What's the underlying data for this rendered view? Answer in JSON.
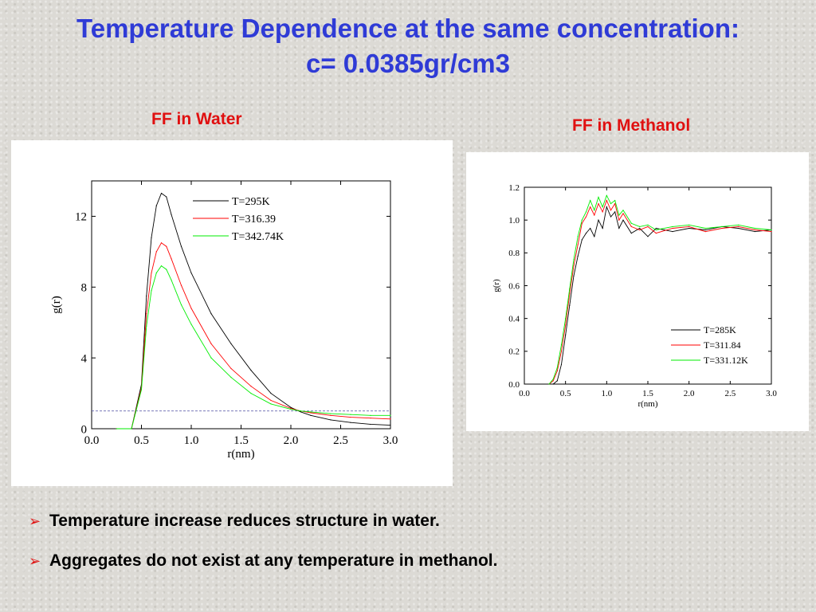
{
  "slide": {
    "title_line1": "Temperature Dependence at the same concentration:",
    "title_line2": "c= 0.0385gr/cm3",
    "water_heading": "FF in Water",
    "methanol_heading": "FF in Methanol",
    "bullets": [
      "Temperature increase reduces structure in water.",
      "Aggregates do not exist at any temperature in methanol."
    ],
    "colors": {
      "title": "#2f3bd6",
      "heading": "#e01010",
      "bullet_arrow": "#e01010"
    },
    "bullet_icon": "arrowhead-bullet-icon"
  },
  "chart_data": [
    {
      "type": "line",
      "title": "",
      "xlabel": "r(nm)",
      "ylabel": "g(r)",
      "xlim": [
        0.0,
        3.0
      ],
      "ylim": [
        0,
        14
      ],
      "xticks": [
        "0.0",
        "0.5",
        "1.0",
        "1.5",
        "2.0",
        "2.5",
        "3.0"
      ],
      "yticks": [
        "0",
        "4",
        "8",
        "12"
      ],
      "legend_position": "top-right",
      "reference_line": {
        "y": 1.0,
        "style": "dashed"
      },
      "series": [
        {
          "name": "T=295K",
          "color": "#000000",
          "x": [
            0.25,
            0.4,
            0.5,
            0.55,
            0.6,
            0.65,
            0.7,
            0.75,
            0.8,
            0.9,
            1.0,
            1.2,
            1.4,
            1.6,
            1.8,
            2.0,
            2.1,
            2.2,
            2.4,
            2.6,
            2.8,
            3.0
          ],
          "y": [
            0,
            0,
            2.5,
            7.5,
            10.8,
            12.6,
            13.3,
            13.1,
            12.1,
            10.3,
            8.8,
            6.5,
            4.8,
            3.3,
            2.0,
            1.2,
            0.95,
            0.75,
            0.5,
            0.35,
            0.25,
            0.2
          ]
        },
        {
          "name": "T=316.39",
          "color": "#ff0000",
          "x": [
            0.25,
            0.4,
            0.5,
            0.55,
            0.6,
            0.65,
            0.7,
            0.75,
            0.8,
            0.9,
            1.0,
            1.2,
            1.4,
            1.6,
            1.8,
            2.0,
            2.1,
            2.2,
            2.4,
            2.6,
            2.8,
            3.0
          ],
          "y": [
            0,
            0,
            2.3,
            6.5,
            8.8,
            10.0,
            10.5,
            10.3,
            9.6,
            8.1,
            6.8,
            4.8,
            3.4,
            2.4,
            1.6,
            1.15,
            1.0,
            0.9,
            0.75,
            0.65,
            0.6,
            0.55
          ]
        },
        {
          "name": "T=342.74K",
          "color": "#00ee00",
          "x": [
            0.25,
            0.4,
            0.5,
            0.55,
            0.6,
            0.65,
            0.7,
            0.75,
            0.8,
            0.9,
            1.0,
            1.2,
            1.4,
            1.6,
            1.8,
            2.0,
            2.1,
            2.2,
            2.4,
            2.6,
            2.8,
            3.0
          ],
          "y": [
            0,
            0,
            2.2,
            5.8,
            7.8,
            8.8,
            9.2,
            9.0,
            8.4,
            7.0,
            5.9,
            4.0,
            2.9,
            2.0,
            1.4,
            1.1,
            1.0,
            0.95,
            0.85,
            0.8,
            0.75,
            0.75
          ]
        }
      ]
    },
    {
      "type": "line",
      "title": "",
      "xlabel": "r(nm)",
      "ylabel": "g(r)",
      "xlim": [
        0.0,
        3.0
      ],
      "ylim": [
        0.0,
        1.2
      ],
      "xticks": [
        "0.0",
        "0.5",
        "1.0",
        "1.5",
        "2.0",
        "2.5",
        "3.0"
      ],
      "yticks": [
        "0.0",
        "0.2",
        "0.4",
        "0.6",
        "0.8",
        "1.0",
        "1.2"
      ],
      "legend_position": "bottom-right",
      "series": [
        {
          "name": "T=285K",
          "color": "#000000",
          "x": [
            0.3,
            0.35,
            0.4,
            0.45,
            0.5,
            0.55,
            0.6,
            0.65,
            0.7,
            0.75,
            0.8,
            0.85,
            0.9,
            0.95,
            1.0,
            1.05,
            1.1,
            1.15,
            1.2,
            1.3,
            1.4,
            1.5,
            1.6,
            1.8,
            2.0,
            2.2,
            2.4,
            2.6,
            2.8,
            3.0
          ],
          "y": [
            0,
            0,
            0.02,
            0.12,
            0.3,
            0.48,
            0.66,
            0.78,
            0.88,
            0.92,
            0.95,
            0.9,
            1.0,
            0.95,
            1.08,
            1.02,
            1.05,
            0.95,
            1.0,
            0.92,
            0.95,
            0.9,
            0.95,
            0.93,
            0.95,
            0.94,
            0.96,
            0.95,
            0.93,
            0.94
          ]
        },
        {
          "name": "T=311.84",
          "color": "#ff0000",
          "x": [
            0.3,
            0.35,
            0.4,
            0.45,
            0.5,
            0.55,
            0.6,
            0.65,
            0.7,
            0.75,
            0.8,
            0.85,
            0.9,
            0.95,
            1.0,
            1.05,
            1.1,
            1.15,
            1.2,
            1.3,
            1.4,
            1.5,
            1.6,
            1.8,
            2.0,
            2.2,
            2.4,
            2.6,
            2.8,
            3.0
          ],
          "y": [
            0,
            0.02,
            0.08,
            0.2,
            0.36,
            0.55,
            0.72,
            0.85,
            0.98,
            1.02,
            1.08,
            1.03,
            1.1,
            1.05,
            1.12,
            1.06,
            1.1,
            1.0,
            1.04,
            0.96,
            0.94,
            0.96,
            0.92,
            0.95,
            0.96,
            0.93,
            0.95,
            0.96,
            0.94,
            0.93
          ]
        },
        {
          "name": "T=331.12K",
          "color": "#00ee00",
          "x": [
            0.3,
            0.35,
            0.4,
            0.45,
            0.5,
            0.55,
            0.6,
            0.65,
            0.7,
            0.75,
            0.8,
            0.85,
            0.9,
            0.95,
            1.0,
            1.05,
            1.1,
            1.15,
            1.2,
            1.3,
            1.4,
            1.5,
            1.6,
            1.8,
            2.0,
            2.2,
            2.4,
            2.6,
            2.8,
            3.0
          ],
          "y": [
            0,
            0.03,
            0.1,
            0.24,
            0.4,
            0.58,
            0.76,
            0.9,
            1.0,
            1.05,
            1.12,
            1.06,
            1.14,
            1.08,
            1.15,
            1.1,
            1.12,
            1.03,
            1.06,
            0.98,
            0.96,
            0.97,
            0.94,
            0.96,
            0.97,
            0.95,
            0.96,
            0.97,
            0.95,
            0.94
          ]
        }
      ]
    }
  ]
}
